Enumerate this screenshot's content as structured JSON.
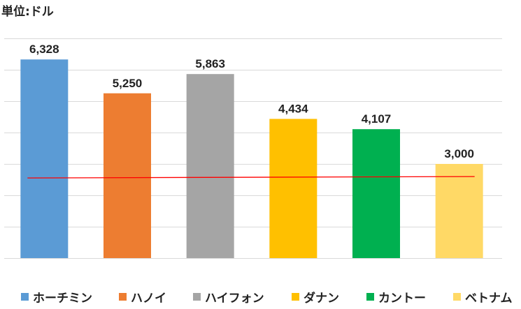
{
  "unit_label": "単位:ドル",
  "chart_data": {
    "type": "bar",
    "categories": [
      "ホーチミン",
      "ハノイ",
      "ハイフォン",
      "ダナン",
      "カントー",
      "ベトナム"
    ],
    "values": [
      6328,
      5250,
      5863,
      4434,
      4107,
      3000
    ],
    "value_labels": [
      "6,328",
      "5,250",
      "5,863",
      "4,434",
      "4,107",
      "3,000"
    ],
    "colors": [
      "#5B9BD5",
      "#ED7D31",
      "#A5A5A5",
      "#FFC000",
      "#00B050",
      "#FFD966"
    ],
    "ylim": [
      0,
      7000
    ],
    "reference_line": {
      "value": 2575,
      "color": "#FF0000"
    },
    "grid": true,
    "legend_position": "bottom"
  }
}
